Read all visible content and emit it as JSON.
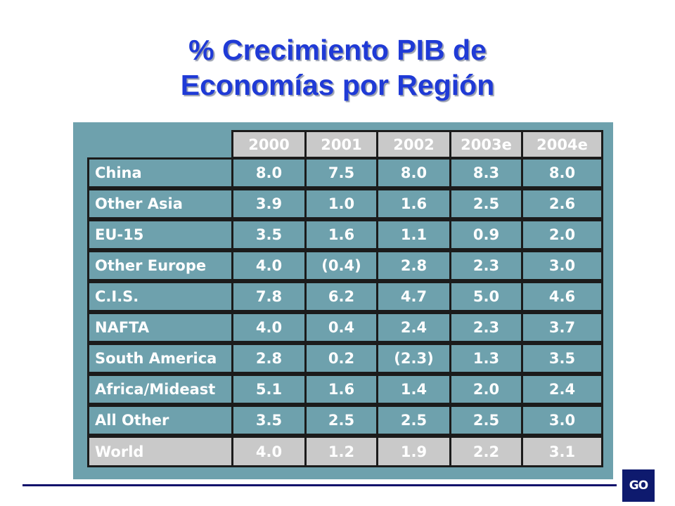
{
  "title_lines": [
    "% Crecimiento PIB de",
    "Economías por Región"
  ],
  "logo_text": "GO",
  "colors": {
    "title": "#1f3ad6",
    "panel": "#6ea1ad",
    "header_fill": "#c9c9c9",
    "rule": "#10106b",
    "logo_bg": "#0e1a6e"
  },
  "chart_data": {
    "type": "table",
    "columns": [
      "2000",
      "2001",
      "2002",
      "2003e",
      "2004e"
    ],
    "rows": [
      {
        "label": "China",
        "values": [
          "8.0",
          "7.5",
          "8.0",
          "8.3",
          "8.0"
        ]
      },
      {
        "label": "Other Asia",
        "values": [
          "3.9",
          "1.0",
          "1.6",
          "2.5",
          "2.6"
        ]
      },
      {
        "label": "EU-15",
        "values": [
          "3.5",
          "1.6",
          "1.1",
          "0.9",
          "2.0"
        ]
      },
      {
        "label": "Other Europe",
        "values": [
          "4.0",
          "(0.4)",
          "2.8",
          "2.3",
          "3.0"
        ]
      },
      {
        "label": "C.I.S.",
        "values": [
          "7.8",
          "6.2",
          "4.7",
          "5.0",
          "4.6"
        ]
      },
      {
        "label": "NAFTA",
        "values": [
          "4.0",
          "0.4",
          "2.4",
          "2.3",
          "3.7"
        ]
      },
      {
        "label": "South America",
        "values": [
          "2.8",
          "0.2",
          "(2.3)",
          "1.3",
          "3.5"
        ]
      },
      {
        "label": "Africa/Mideast",
        "values": [
          "5.1",
          "1.6",
          "1.4",
          "2.0",
          "2.4"
        ]
      },
      {
        "label": "All Other",
        "values": [
          "3.5",
          "2.5",
          "2.5",
          "2.5",
          "3.0"
        ]
      },
      {
        "label": "World",
        "values": [
          "4.0",
          "1.2",
          "1.9",
          "2.2",
          "3.1"
        ],
        "highlight": true
      }
    ]
  }
}
